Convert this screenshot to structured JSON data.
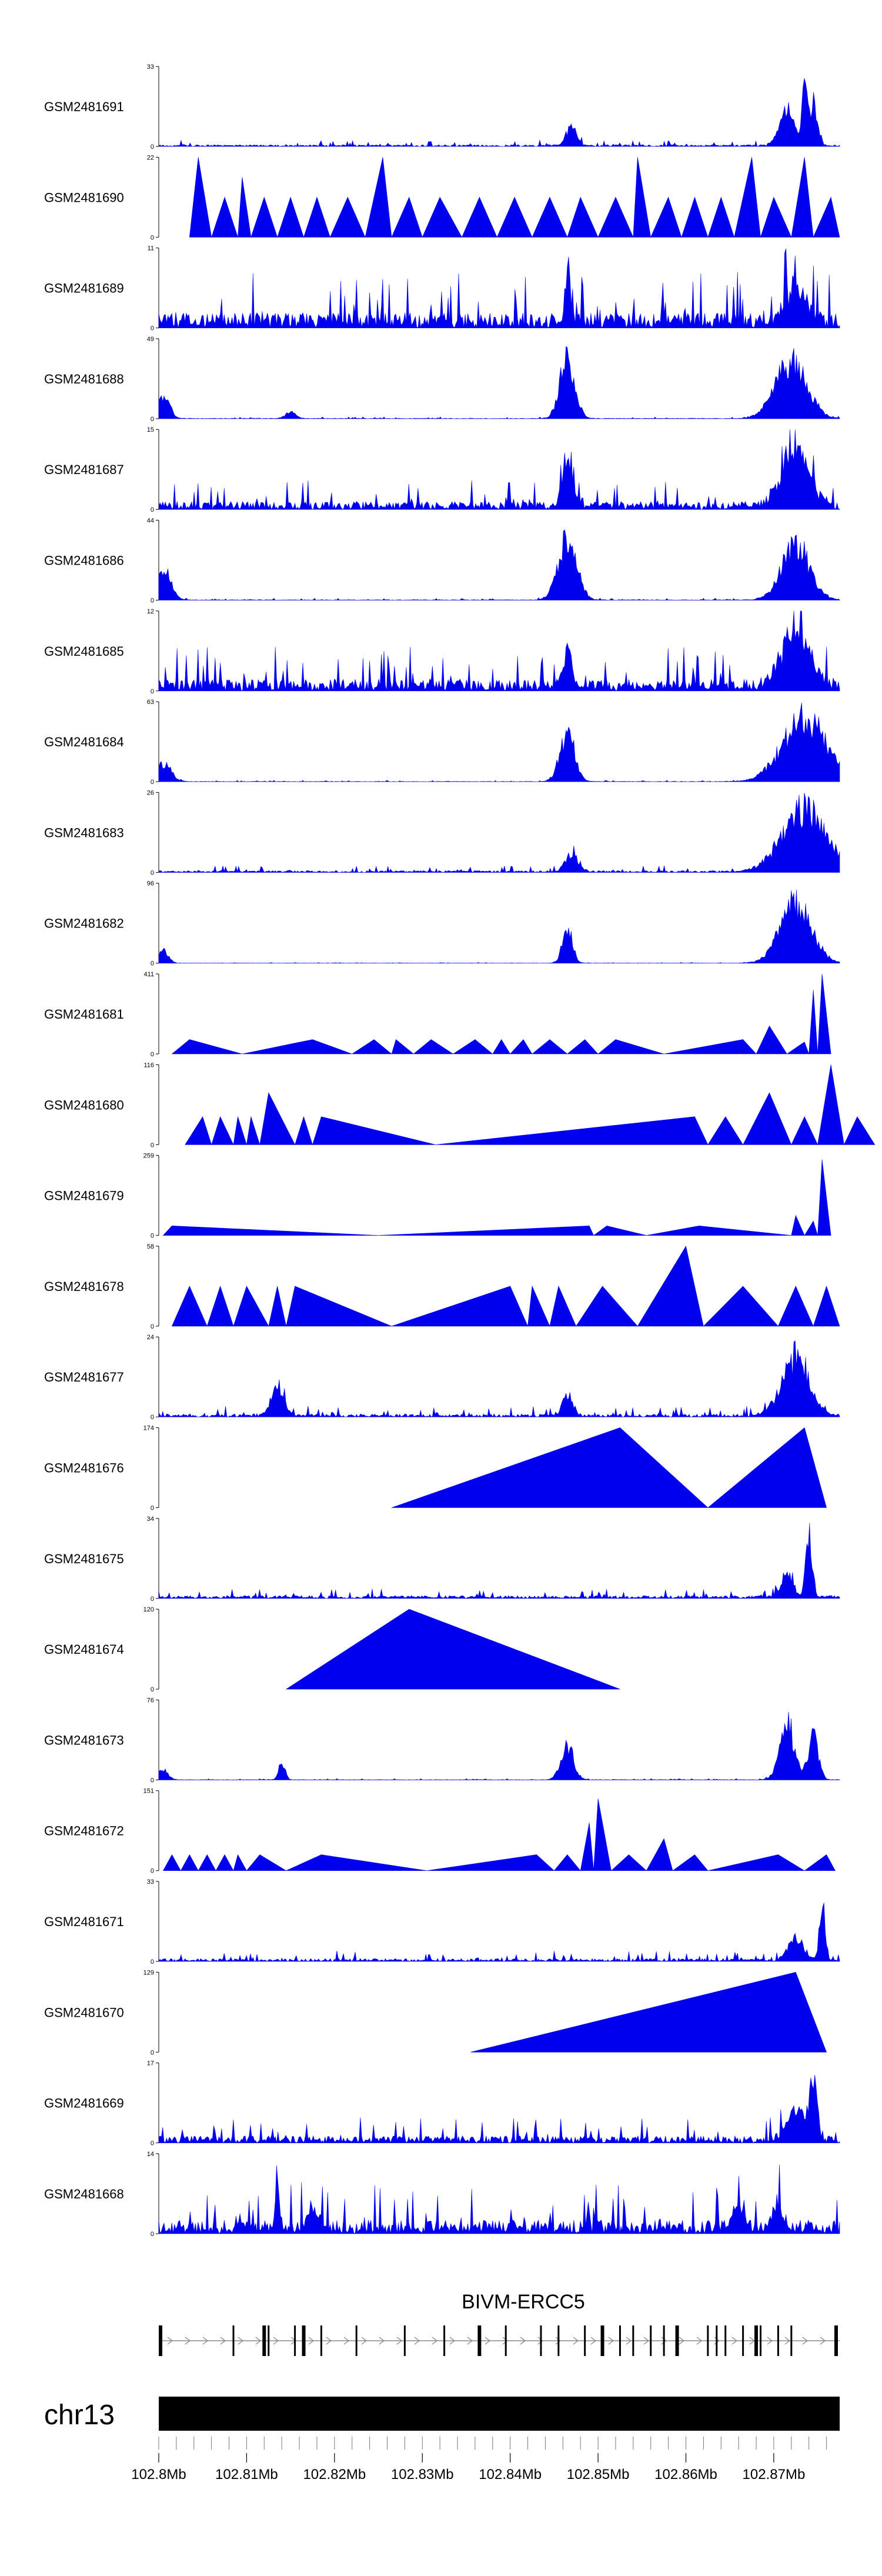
{
  "chart_data": {
    "type": "area",
    "title": "",
    "chromosome": "chr13",
    "region_mb": [
      102.8,
      102.8775
    ],
    "track_color": "#0000ee",
    "tracks": [
      {
        "label": "GSM2481691",
        "ymax": 33,
        "shape": "spiky",
        "base": 1.2,
        "peaks": [
          [
            102.847,
            0.35,
            0.0008
          ],
          [
            102.8715,
            0.55,
            0.0012
          ],
          [
            102.8735,
            1.0,
            0.0004
          ],
          [
            102.8745,
            0.7,
            0.0006
          ]
        ]
      },
      {
        "label": "GSM2481690",
        "ymax": 22,
        "shape": "tri",
        "pts": [
          [
            102.8035,
            0
          ],
          [
            102.8045,
            1.0
          ],
          [
            102.806,
            0
          ],
          [
            102.8075,
            0.5
          ],
          [
            102.809,
            0
          ],
          [
            102.8095,
            0.75
          ],
          [
            102.8105,
            0
          ],
          [
            102.812,
            0.5
          ],
          [
            102.8135,
            0
          ],
          [
            102.815,
            0.5
          ],
          [
            102.8165,
            0
          ],
          [
            102.818,
            0.5
          ],
          [
            102.8195,
            0
          ],
          [
            102.8215,
            0.5
          ],
          [
            102.8235,
            0
          ],
          [
            102.8255,
            1.0
          ],
          [
            102.8265,
            0
          ],
          [
            102.8285,
            0.5
          ],
          [
            102.83,
            0
          ],
          [
            102.832,
            0.5
          ],
          [
            102.8345,
            0
          ],
          [
            102.8365,
            0.5
          ],
          [
            102.8385,
            0
          ],
          [
            102.8405,
            0.5
          ],
          [
            102.8425,
            0
          ],
          [
            102.8445,
            0.5
          ],
          [
            102.8465,
            0
          ],
          [
            102.848,
            0.5
          ],
          [
            102.85,
            0
          ],
          [
            102.852,
            0.5
          ],
          [
            102.854,
            0
          ],
          [
            102.8545,
            1.0
          ],
          [
            102.856,
            0
          ],
          [
            102.858,
            0.5
          ],
          [
            102.8595,
            0
          ],
          [
            102.861,
            0.5
          ],
          [
            102.8625,
            0
          ],
          [
            102.864,
            0.5
          ],
          [
            102.8655,
            0
          ],
          [
            102.8675,
            1.0
          ],
          [
            102.8685,
            0
          ],
          [
            102.87,
            0.5
          ],
          [
            102.872,
            0
          ],
          [
            102.8735,
            1.0
          ],
          [
            102.8745,
            0
          ],
          [
            102.8765,
            0.5
          ],
          [
            102.8775,
            0
          ]
        ]
      },
      {
        "label": "GSM2481689",
        "ymax": 11,
        "shape": "spiky",
        "base": 3.5,
        "peaks": [
          [
            102.8465,
            0.9,
            0.0004
          ],
          [
            102.8725,
            0.6,
            0.0015
          ]
        ]
      },
      {
        "label": "GSM2481688",
        "ymax": 49,
        "shape": "spiky",
        "base": 0.5,
        "peaks": [
          [
            102.8005,
            0.35,
            0.001
          ],
          [
            102.815,
            0.1,
            0.0008
          ],
          [
            102.8465,
            0.95,
            0.0012
          ],
          [
            102.872,
            0.9,
            0.0025
          ]
        ]
      },
      {
        "label": "GSM2481687",
        "ymax": 15,
        "shape": "spiky",
        "base": 2.5,
        "peaks": [
          [
            102.8465,
            0.8,
            0.0008
          ],
          [
            102.8725,
            0.85,
            0.0022
          ]
        ]
      },
      {
        "label": "GSM2481686",
        "ymax": 44,
        "shape": "spiky",
        "base": 0.5,
        "peaks": [
          [
            102.8005,
            0.5,
            0.0012
          ],
          [
            102.8465,
            0.95,
            0.0015
          ],
          [
            102.8725,
            0.9,
            0.0022
          ]
        ]
      },
      {
        "label": "GSM2481685",
        "ymax": 12,
        "shape": "spiky",
        "base": 3.0,
        "peaks": [
          [
            102.8465,
            0.55,
            0.0008
          ],
          [
            102.8725,
            0.85,
            0.0022
          ]
        ]
      },
      {
        "label": "GSM2481684",
        "ymax": 63,
        "shape": "spiky",
        "base": 0.5,
        "peaks": [
          [
            102.8005,
            0.3,
            0.0012
          ],
          [
            102.8465,
            0.75,
            0.0012
          ],
          [
            102.8735,
            1.0,
            0.0035
          ]
        ]
      },
      {
        "label": "GSM2481683",
        "ymax": 26,
        "shape": "spiky",
        "base": 1.0,
        "peaks": [
          [
            102.847,
            0.3,
            0.001
          ],
          [
            102.8735,
            1.0,
            0.0035
          ]
        ]
      },
      {
        "label": "GSM2481682",
        "ymax": 96,
        "shape": "spiky",
        "base": 0.4,
        "peaks": [
          [
            102.8005,
            0.2,
            0.0008
          ],
          [
            102.8465,
            0.55,
            0.0008
          ],
          [
            102.8725,
            0.95,
            0.0025
          ]
        ]
      },
      {
        "label": "GSM2481681",
        "ymax": 411,
        "shape": "tri",
        "pts": [
          [
            102.8015,
            0
          ],
          [
            102.8035,
            0.18
          ],
          [
            102.8095,
            0
          ],
          [
            102.8175,
            0.18
          ],
          [
            102.822,
            0
          ],
          [
            102.8245,
            0.18
          ],
          [
            102.8265,
            0
          ],
          [
            102.827,
            0.18
          ],
          [
            102.829,
            0
          ],
          [
            102.831,
            0.18
          ],
          [
            102.8335,
            0
          ],
          [
            102.836,
            0.18
          ],
          [
            102.838,
            0
          ],
          [
            102.839,
            0.18
          ],
          [
            102.84,
            0
          ],
          [
            102.8415,
            0.18
          ],
          [
            102.8425,
            0
          ],
          [
            102.8445,
            0.18
          ],
          [
            102.8465,
            0
          ],
          [
            102.8485,
            0.18
          ],
          [
            102.85,
            0
          ],
          [
            102.852,
            0.18
          ],
          [
            102.8575,
            0
          ],
          [
            102.8665,
            0.18
          ],
          [
            102.868,
            0
          ],
          [
            102.8695,
            0.35
          ],
          [
            102.8715,
            0
          ],
          [
            102.8735,
            0.15
          ],
          [
            102.874,
            0
          ],
          [
            102.8745,
            0.8
          ],
          [
            102.875,
            0
          ],
          [
            102.8755,
            1.0
          ],
          [
            102.8765,
            0
          ]
        ]
      },
      {
        "label": "GSM2481680",
        "ymax": 116,
        "shape": "tri",
        "pts": [
          [
            102.803,
            0
          ],
          [
            102.805,
            0.35
          ],
          [
            102.806,
            0
          ],
          [
            102.807,
            0.35
          ],
          [
            102.8085,
            0
          ],
          [
            102.809,
            0.35
          ],
          [
            102.81,
            0
          ],
          [
            102.8105,
            0.35
          ],
          [
            102.8115,
            0
          ],
          [
            102.8125,
            0.65
          ],
          [
            102.8155,
            0
          ],
          [
            102.8165,
            0.35
          ],
          [
            102.8175,
            0
          ],
          [
            102.8185,
            0.35
          ],
          [
            102.8315,
            0
          ],
          [
            102.861,
            0.35
          ],
          [
            102.8625,
            0
          ],
          [
            102.8645,
            0.35
          ],
          [
            102.8665,
            0
          ],
          [
            102.8695,
            0.65
          ],
          [
            102.872,
            0
          ],
          [
            102.8735,
            0.35
          ],
          [
            102.875,
            0
          ],
          [
            102.8765,
            1.0
          ],
          [
            102.878,
            0
          ],
          [
            102.8795,
            0.35
          ],
          [
            102.8815,
            0
          ]
        ]
      },
      {
        "label": "GSM2481679",
        "ymax": 259,
        "shape": "tri",
        "pts": [
          [
            102.8005,
            0
          ],
          [
            102.8015,
            0.12
          ],
          [
            102.825,
            0
          ],
          [
            102.849,
            0.12
          ],
          [
            102.8495,
            0
          ],
          [
            102.851,
            0.12
          ],
          [
            102.8555,
            0
          ],
          [
            102.8615,
            0.12
          ],
          [
            102.872,
            0
          ],
          [
            102.8725,
            0.25
          ],
          [
            102.8735,
            0
          ],
          [
            102.8745,
            0.18
          ],
          [
            102.875,
            0
          ],
          [
            102.8755,
            0.95
          ],
          [
            102.8765,
            0
          ]
        ]
      },
      {
        "label": "GSM2481678",
        "ymax": 58,
        "shape": "tri",
        "pts": [
          [
            102.8015,
            0
          ],
          [
            102.8035,
            0.5
          ],
          [
            102.8055,
            0
          ],
          [
            102.807,
            0.5
          ],
          [
            102.8085,
            0
          ],
          [
            102.81,
            0.5
          ],
          [
            102.8125,
            0
          ],
          [
            102.8135,
            0.5
          ],
          [
            102.8145,
            0
          ],
          [
            102.8155,
            0.5
          ],
          [
            102.8265,
            0
          ],
          [
            102.84,
            0.5
          ],
          [
            102.842,
            0
          ],
          [
            102.8425,
            0.5
          ],
          [
            102.8445,
            0
          ],
          [
            102.8455,
            0.5
          ],
          [
            102.8475,
            0
          ],
          [
            102.8505,
            0.5
          ],
          [
            102.8545,
            0
          ],
          [
            102.86,
            1.0
          ],
          [
            102.862,
            0
          ],
          [
            102.8665,
            0.5
          ],
          [
            102.8705,
            0
          ],
          [
            102.8725,
            0.5
          ],
          [
            102.8745,
            0
          ],
          [
            102.876,
            0.5
          ],
          [
            102.8775,
            0
          ]
        ]
      },
      {
        "label": "GSM2481677",
        "ymax": 24,
        "shape": "spiky",
        "base": 1.5,
        "peaks": [
          [
            102.8135,
            0.45,
            0.001
          ],
          [
            102.8465,
            0.3,
            0.0008
          ],
          [
            102.8725,
            0.9,
            0.0022
          ]
        ]
      },
      {
        "label": "GSM2481676",
        "ymax": 174,
        "shape": "tri",
        "pts": [
          [
            102.8265,
            0
          ],
          [
            102.8525,
            1.0
          ],
          [
            102.8625,
            0
          ],
          [
            102.8735,
            1.0
          ],
          [
            102.876,
            0
          ]
        ]
      },
      {
        "label": "GSM2481675",
        "ymax": 34,
        "shape": "spiky",
        "base": 2.0,
        "peaks": [
          [
            102.874,
            1.0,
            0.0005
          ],
          [
            102.8715,
            0.35,
            0.001
          ]
        ]
      },
      {
        "label": "GSM2481674",
        "ymax": 120,
        "shape": "tri",
        "pts": [
          [
            102.8145,
            0
          ],
          [
            102.8285,
            1.0
          ],
          [
            102.8525,
            0
          ]
        ]
      },
      {
        "label": "GSM2481673",
        "ymax": 76,
        "shape": "spiky",
        "base": 0.6,
        "peaks": [
          [
            102.8005,
            0.15,
            0.0008
          ],
          [
            102.814,
            0.3,
            0.0005
          ],
          [
            102.8465,
            0.55,
            0.001
          ],
          [
            102.8715,
            0.9,
            0.0012
          ],
          [
            102.8745,
            0.7,
            0.0008
          ]
        ]
      },
      {
        "label": "GSM2481672",
        "ymax": 151,
        "shape": "tri",
        "pts": [
          [
            102.8005,
            0
          ],
          [
            102.8015,
            0.2
          ],
          [
            102.8025,
            0
          ],
          [
            102.8035,
            0.2
          ],
          [
            102.8045,
            0
          ],
          [
            102.8055,
            0.2
          ],
          [
            102.8065,
            0
          ],
          [
            102.8075,
            0.2
          ],
          [
            102.8085,
            0
          ],
          [
            102.809,
            0.2
          ],
          [
            102.81,
            0
          ],
          [
            102.8115,
            0.2
          ],
          [
            102.8145,
            0
          ],
          [
            102.8185,
            0.2
          ],
          [
            102.8305,
            0
          ],
          [
            102.843,
            0.2
          ],
          [
            102.845,
            0
          ],
          [
            102.8465,
            0.2
          ],
          [
            102.848,
            0
          ],
          [
            102.849,
            0.6
          ],
          [
            102.8495,
            0
          ],
          [
            102.85,
            0.9
          ],
          [
            102.8515,
            0
          ],
          [
            102.8535,
            0.2
          ],
          [
            102.8555,
            0
          ],
          [
            102.8575,
            0.4
          ],
          [
            102.8585,
            0
          ],
          [
            102.861,
            0.2
          ],
          [
            102.8625,
            0
          ],
          [
            102.8705,
            0.2
          ],
          [
            102.8735,
            0
          ],
          [
            102.876,
            0.2
          ],
          [
            102.877,
            0
          ]
        ]
      },
      {
        "label": "GSM2481671",
        "ymax": 33,
        "shape": "spiky",
        "base": 2.0,
        "peaks": [
          [
            102.8755,
            1.0,
            0.0004
          ],
          [
            102.8725,
            0.35,
            0.0012
          ]
        ]
      },
      {
        "label": "GSM2481670",
        "ymax": 129,
        "shape": "tri",
        "pts": [
          [
            102.8355,
            0
          ],
          [
            102.8725,
            1.0
          ],
          [
            102.876,
            0
          ]
        ]
      },
      {
        "label": "GSM2481669",
        "ymax": 17,
        "shape": "spiky",
        "base": 2.5,
        "peaks": [
          [
            102.8745,
            0.9,
            0.0006
          ],
          [
            102.8725,
            0.45,
            0.0015
          ]
        ]
      },
      {
        "label": "GSM2481668",
        "ymax": 14,
        "shape": "spiky",
        "base": 4.0,
        "peaks": [
          [
            102.8135,
            0.95,
            0.0003
          ],
          [
            102.8175,
            0.3,
            0.0008
          ],
          [
            102.866,
            0.35,
            0.0008
          ],
          [
            102.8705,
            0.35,
            0.0008
          ]
        ]
      }
    ],
    "gene": {
      "name": "BIVM-ERCC5",
      "start_mb": 102.8,
      "end_mb": 102.8775,
      "exons_mb": [
        102.8,
        102.8085,
        102.812,
        102.8125,
        102.8155,
        102.8165,
        102.8185,
        102.8225,
        102.828,
        102.8325,
        102.8365,
        102.8395,
        102.8435,
        102.8455,
        102.8485,
        102.8505,
        102.8525,
        102.854,
        102.856,
        102.8575,
        102.859,
        102.8625,
        102.8635,
        102.8645,
        102.8665,
        102.868,
        102.8685,
        102.8705,
        102.872,
        102.8775
      ]
    },
    "axis": {
      "ticks": [
        102.8,
        102.81,
        102.82,
        102.83,
        102.84,
        102.85,
        102.86,
        102.87
      ],
      "tick_labels": [
        "102.8Mb",
        "102.81Mb",
        "102.82Mb",
        "102.83Mb",
        "102.84Mb",
        "102.85Mb",
        "102.86Mb",
        "102.87Mb"
      ],
      "minor_step_mb": 0.002
    }
  }
}
